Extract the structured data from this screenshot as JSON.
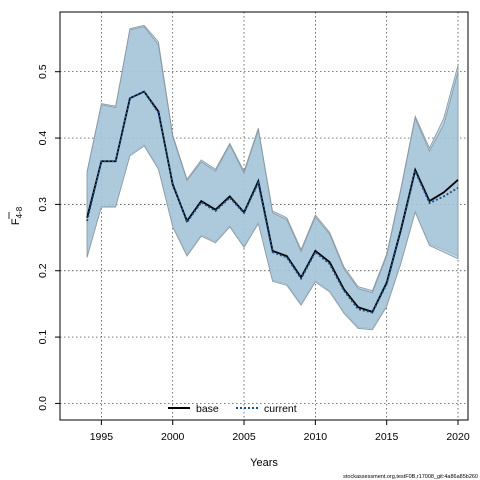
{
  "chart_data": {
    "type": "line",
    "xlabel": "Years",
    "ylabel_main": "F",
    "ylabel_sub": "4-8",
    "xlim": [
      1992.1,
      2020.7
    ],
    "ylim": [
      -0.025,
      0.59
    ],
    "xticks": [
      1995,
      2000,
      2005,
      2010,
      2015,
      2020
    ],
    "yticks": [
      0.0,
      0.1,
      0.2,
      0.3,
      0.4,
      0.5
    ],
    "ytick_labels": [
      "0.0",
      "0.1",
      "0.2",
      "0.3",
      "0.4",
      "0.5"
    ],
    "grid": true,
    "legend_position": "bottom-center",
    "colors": {
      "band": "#a6c6d9",
      "band_edge": "#8a9aa6",
      "base": "#000000",
      "current": "#1a4f8a"
    },
    "x": [
      1994,
      1995,
      1996,
      1997,
      1998,
      1999,
      2000,
      2001,
      2002,
      2003,
      2004,
      2005,
      2006,
      2007,
      2008,
      2009,
      2010,
      2011,
      2012,
      2013,
      2014,
      2015,
      2016,
      2017,
      2018,
      2019,
      2020
    ],
    "series": [
      {
        "name": "base",
        "style": "solid",
        "values": [
          0.28,
          0.365,
          0.365,
          0.46,
          0.47,
          0.44,
          0.33,
          0.275,
          0.305,
          0.292,
          0.312,
          0.288,
          0.335,
          0.23,
          0.222,
          0.19,
          0.23,
          0.213,
          0.172,
          0.145,
          0.138,
          0.182,
          0.262,
          0.352,
          0.305,
          0.318,
          0.337
        ],
        "lower": [
          0.222,
          0.297,
          0.297,
          0.375,
          0.39,
          0.355,
          0.268,
          0.224,
          0.254,
          0.244,
          0.268,
          0.237,
          0.273,
          0.186,
          0.18,
          0.15,
          0.185,
          0.17,
          0.138,
          0.115,
          0.113,
          0.148,
          0.213,
          0.29,
          0.24,
          0.232,
          0.222
        ],
        "upper": [
          0.35,
          0.452,
          0.448,
          0.565,
          0.57,
          0.545,
          0.405,
          0.338,
          0.367,
          0.353,
          0.392,
          0.35,
          0.415,
          0.29,
          0.28,
          0.232,
          0.284,
          0.258,
          0.206,
          0.176,
          0.17,
          0.225,
          0.325,
          0.433,
          0.385,
          0.43,
          0.51
        ]
      },
      {
        "name": "current",
        "style": "dotted",
        "values": [
          0.275,
          0.365,
          0.365,
          0.46,
          0.47,
          0.438,
          0.332,
          0.273,
          0.303,
          0.29,
          0.31,
          0.287,
          0.332,
          0.228,
          0.22,
          0.188,
          0.228,
          0.21,
          0.17,
          0.142,
          0.137,
          0.18,
          0.26,
          0.35,
          0.302,
          0.312,
          0.325
        ],
        "lower": [
          0.22,
          0.296,
          0.296,
          0.373,
          0.388,
          0.353,
          0.266,
          0.222,
          0.252,
          0.242,
          0.266,
          0.235,
          0.271,
          0.184,
          0.178,
          0.148,
          0.183,
          0.168,
          0.136,
          0.113,
          0.111,
          0.146,
          0.211,
          0.288,
          0.238,
          0.228,
          0.218
        ],
        "upper": [
          0.348,
          0.45,
          0.446,
          0.563,
          0.568,
          0.54,
          0.402,
          0.336,
          0.364,
          0.35,
          0.39,
          0.347,
          0.412,
          0.287,
          0.277,
          0.229,
          0.281,
          0.255,
          0.203,
          0.173,
          0.167,
          0.222,
          0.322,
          0.43,
          0.38,
          0.42,
          0.5
        ]
      }
    ],
    "footnote": "stockassessment.org,testF0B,r17008_git:4a86a85b260"
  }
}
